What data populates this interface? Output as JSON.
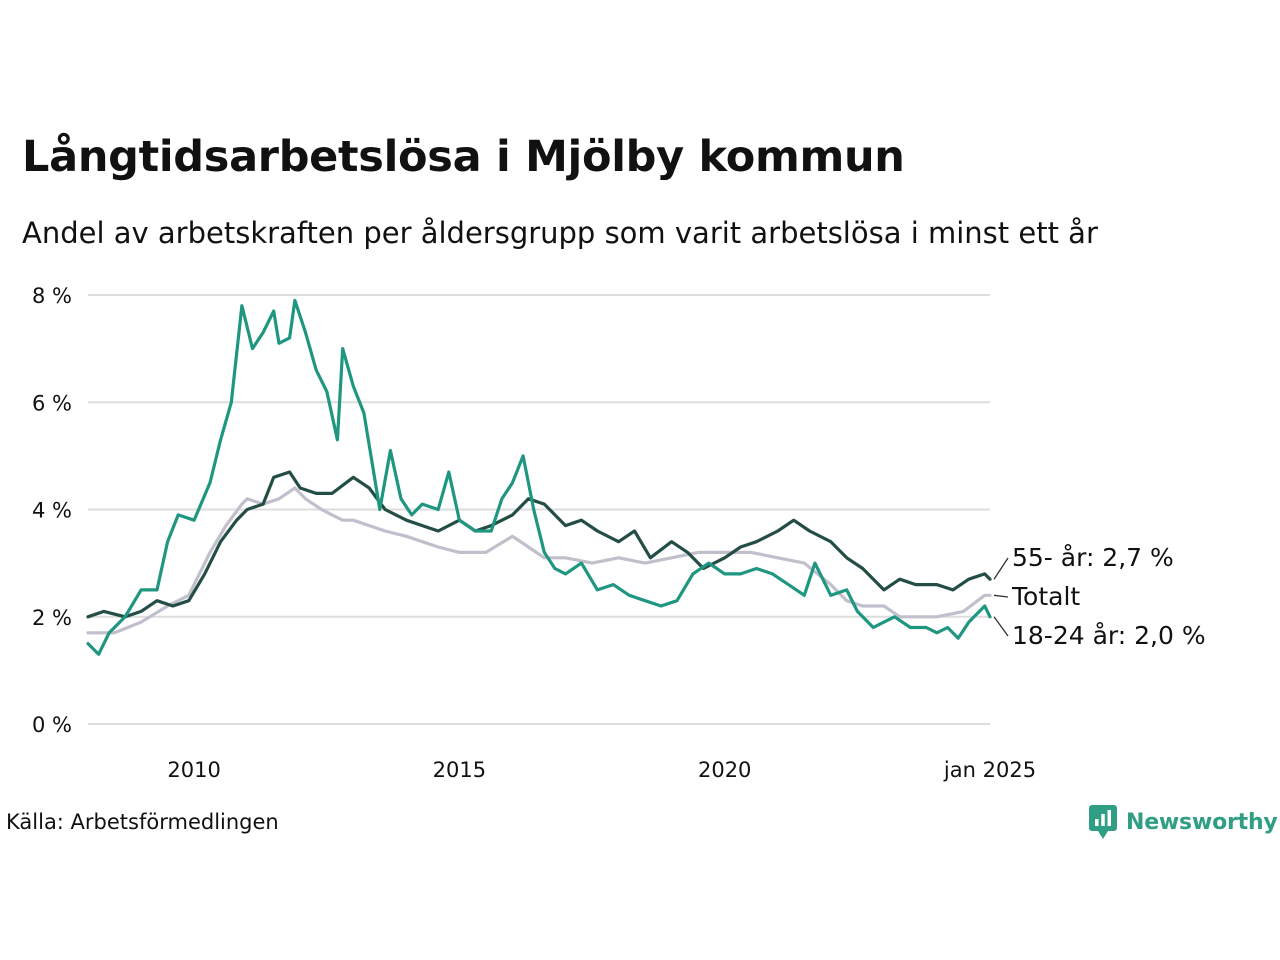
{
  "chart_data": {
    "type": "line",
    "title": "Långtidsarbetslösa i Mjölby kommun",
    "subtitle": "Andel av arbetskraften per åldersgrupp som varit arbetslösa i minst ett år",
    "source": "Källa: Arbetsförmedlingen",
    "brand": "Newsworthy",
    "y_unit": "%",
    "ylim": [
      0,
      8
    ],
    "y_ticks": [
      {
        "value": 0,
        "label": "0 %"
      },
      {
        "value": 2,
        "label": "2 %"
      },
      {
        "value": 4,
        "label": "4 %"
      },
      {
        "value": 6,
        "label": "6 %"
      },
      {
        "value": 8,
        "label": "8 %"
      }
    ],
    "xlim": [
      2008.0,
      2025.0
    ],
    "x_ticks": [
      {
        "value": 2010.0,
        "label": "2010"
      },
      {
        "value": 2015.0,
        "label": "2015"
      },
      {
        "value": 2020.0,
        "label": "2020"
      },
      {
        "value": 2025.0,
        "label": "jan 2025"
      }
    ],
    "grid": true,
    "series": [
      {
        "name": "Totalt",
        "label": "Totalt",
        "color": "#c2bfcc",
        "points": [
          [
            2008.0,
            1.7
          ],
          [
            2008.5,
            1.7
          ],
          [
            2009.0,
            1.9
          ],
          [
            2009.5,
            2.2
          ],
          [
            2009.9,
            2.4
          ],
          [
            2010.3,
            3.2
          ],
          [
            2010.6,
            3.7
          ],
          [
            2010.9,
            4.1
          ],
          [
            2011.0,
            4.2
          ],
          [
            2011.3,
            4.1
          ],
          [
            2011.6,
            4.2
          ],
          [
            2011.9,
            4.4
          ],
          [
            2012.1,
            4.2
          ],
          [
            2012.4,
            4.0
          ],
          [
            2012.6,
            3.9
          ],
          [
            2012.8,
            3.8
          ],
          [
            2013.0,
            3.8
          ],
          [
            2013.3,
            3.7
          ],
          [
            2013.6,
            3.6
          ],
          [
            2014.0,
            3.5
          ],
          [
            2014.3,
            3.4
          ],
          [
            2014.6,
            3.3
          ],
          [
            2015.0,
            3.2
          ],
          [
            2015.5,
            3.2
          ],
          [
            2016.0,
            3.5
          ],
          [
            2016.3,
            3.3
          ],
          [
            2016.6,
            3.1
          ],
          [
            2017.0,
            3.1
          ],
          [
            2017.5,
            3.0
          ],
          [
            2018.0,
            3.1
          ],
          [
            2018.5,
            3.0
          ],
          [
            2019.0,
            3.1
          ],
          [
            2019.5,
            3.2
          ],
          [
            2020.0,
            3.2
          ],
          [
            2020.5,
            3.2
          ],
          [
            2021.0,
            3.1
          ],
          [
            2021.5,
            3.0
          ],
          [
            2022.0,
            2.6
          ],
          [
            2022.3,
            2.3
          ],
          [
            2022.6,
            2.2
          ],
          [
            2023.0,
            2.2
          ],
          [
            2023.3,
            2.0
          ],
          [
            2023.6,
            2.0
          ],
          [
            2024.0,
            2.0
          ],
          [
            2024.5,
            2.1
          ],
          [
            2024.9,
            2.4
          ],
          [
            2025.0,
            2.4
          ]
        ]
      },
      {
        "name": "55- år",
        "label": "55- år: 2,7 %",
        "color": "#234d45",
        "points": [
          [
            2008.0,
            2.0
          ],
          [
            2008.3,
            2.1
          ],
          [
            2008.7,
            2.0
          ],
          [
            2009.0,
            2.1
          ],
          [
            2009.3,
            2.3
          ],
          [
            2009.6,
            2.2
          ],
          [
            2009.9,
            2.3
          ],
          [
            2010.2,
            2.8
          ],
          [
            2010.5,
            3.4
          ],
          [
            2010.8,
            3.8
          ],
          [
            2011.0,
            4.0
          ],
          [
            2011.3,
            4.1
          ],
          [
            2011.5,
            4.6
          ],
          [
            2011.8,
            4.7
          ],
          [
            2012.0,
            4.4
          ],
          [
            2012.3,
            4.3
          ],
          [
            2012.6,
            4.3
          ],
          [
            2013.0,
            4.6
          ],
          [
            2013.3,
            4.4
          ],
          [
            2013.6,
            4.0
          ],
          [
            2014.0,
            3.8
          ],
          [
            2014.3,
            3.7
          ],
          [
            2014.6,
            3.6
          ],
          [
            2015.0,
            3.8
          ],
          [
            2015.3,
            3.6
          ],
          [
            2015.6,
            3.7
          ],
          [
            2016.0,
            3.9
          ],
          [
            2016.3,
            4.2
          ],
          [
            2016.6,
            4.1
          ],
          [
            2017.0,
            3.7
          ],
          [
            2017.3,
            3.8
          ],
          [
            2017.6,
            3.6
          ],
          [
            2018.0,
            3.4
          ],
          [
            2018.3,
            3.6
          ],
          [
            2018.6,
            3.1
          ],
          [
            2019.0,
            3.4
          ],
          [
            2019.3,
            3.2
          ],
          [
            2019.6,
            2.9
          ],
          [
            2020.0,
            3.1
          ],
          [
            2020.3,
            3.3
          ],
          [
            2020.6,
            3.4
          ],
          [
            2021.0,
            3.6
          ],
          [
            2021.3,
            3.8
          ],
          [
            2021.6,
            3.6
          ],
          [
            2022.0,
            3.4
          ],
          [
            2022.3,
            3.1
          ],
          [
            2022.6,
            2.9
          ],
          [
            2023.0,
            2.5
          ],
          [
            2023.3,
            2.7
          ],
          [
            2023.6,
            2.6
          ],
          [
            2024.0,
            2.6
          ],
          [
            2024.3,
            2.5
          ],
          [
            2024.6,
            2.7
          ],
          [
            2024.9,
            2.8
          ],
          [
            2025.0,
            2.7
          ]
        ]
      },
      {
        "name": "18-24 år",
        "label": "18-24 år: 2,0 %",
        "color": "#1f9680",
        "points": [
          [
            2008.0,
            1.5
          ],
          [
            2008.2,
            1.3
          ],
          [
            2008.4,
            1.7
          ],
          [
            2008.7,
            2.0
          ],
          [
            2009.0,
            2.5
          ],
          [
            2009.3,
            2.5
          ],
          [
            2009.5,
            3.4
          ],
          [
            2009.7,
            3.9
          ],
          [
            2010.0,
            3.8
          ],
          [
            2010.3,
            4.5
          ],
          [
            2010.5,
            5.3
          ],
          [
            2010.7,
            6.0
          ],
          [
            2010.9,
            7.8
          ],
          [
            2011.1,
            7.0
          ],
          [
            2011.3,
            7.3
          ],
          [
            2011.5,
            7.7
          ],
          [
            2011.6,
            7.1
          ],
          [
            2011.8,
            7.2
          ],
          [
            2011.9,
            7.9
          ],
          [
            2012.1,
            7.3
          ],
          [
            2012.3,
            6.6
          ],
          [
            2012.5,
            6.2
          ],
          [
            2012.7,
            5.3
          ],
          [
            2012.8,
            7.0
          ],
          [
            2013.0,
            6.3
          ],
          [
            2013.2,
            5.8
          ],
          [
            2013.4,
            4.6
          ],
          [
            2013.5,
            4.0
          ],
          [
            2013.7,
            5.1
          ],
          [
            2013.9,
            4.2
          ],
          [
            2014.1,
            3.9
          ],
          [
            2014.3,
            4.1
          ],
          [
            2014.6,
            4.0
          ],
          [
            2014.8,
            4.7
          ],
          [
            2015.0,
            3.8
          ],
          [
            2015.3,
            3.6
          ],
          [
            2015.6,
            3.6
          ],
          [
            2015.8,
            4.2
          ],
          [
            2016.0,
            4.5
          ],
          [
            2016.2,
            5.0
          ],
          [
            2016.4,
            4.0
          ],
          [
            2016.6,
            3.2
          ],
          [
            2016.8,
            2.9
          ],
          [
            2017.0,
            2.8
          ],
          [
            2017.3,
            3.0
          ],
          [
            2017.6,
            2.5
          ],
          [
            2017.9,
            2.6
          ],
          [
            2018.2,
            2.4
          ],
          [
            2018.5,
            2.3
          ],
          [
            2018.8,
            2.2
          ],
          [
            2019.1,
            2.3
          ],
          [
            2019.4,
            2.8
          ],
          [
            2019.7,
            3.0
          ],
          [
            2020.0,
            2.8
          ],
          [
            2020.3,
            2.8
          ],
          [
            2020.6,
            2.9
          ],
          [
            2020.9,
            2.8
          ],
          [
            2021.2,
            2.6
          ],
          [
            2021.5,
            2.4
          ],
          [
            2021.7,
            3.0
          ],
          [
            2022.0,
            2.4
          ],
          [
            2022.3,
            2.5
          ],
          [
            2022.5,
            2.1
          ],
          [
            2022.8,
            1.8
          ],
          [
            2023.0,
            1.9
          ],
          [
            2023.2,
            2.0
          ],
          [
            2023.5,
            1.8
          ],
          [
            2023.8,
            1.8
          ],
          [
            2024.0,
            1.7
          ],
          [
            2024.2,
            1.8
          ],
          [
            2024.4,
            1.6
          ],
          [
            2024.6,
            1.9
          ],
          [
            2024.8,
            2.1
          ],
          [
            2024.9,
            2.2
          ],
          [
            2025.0,
            2.0
          ]
        ]
      }
    ]
  }
}
